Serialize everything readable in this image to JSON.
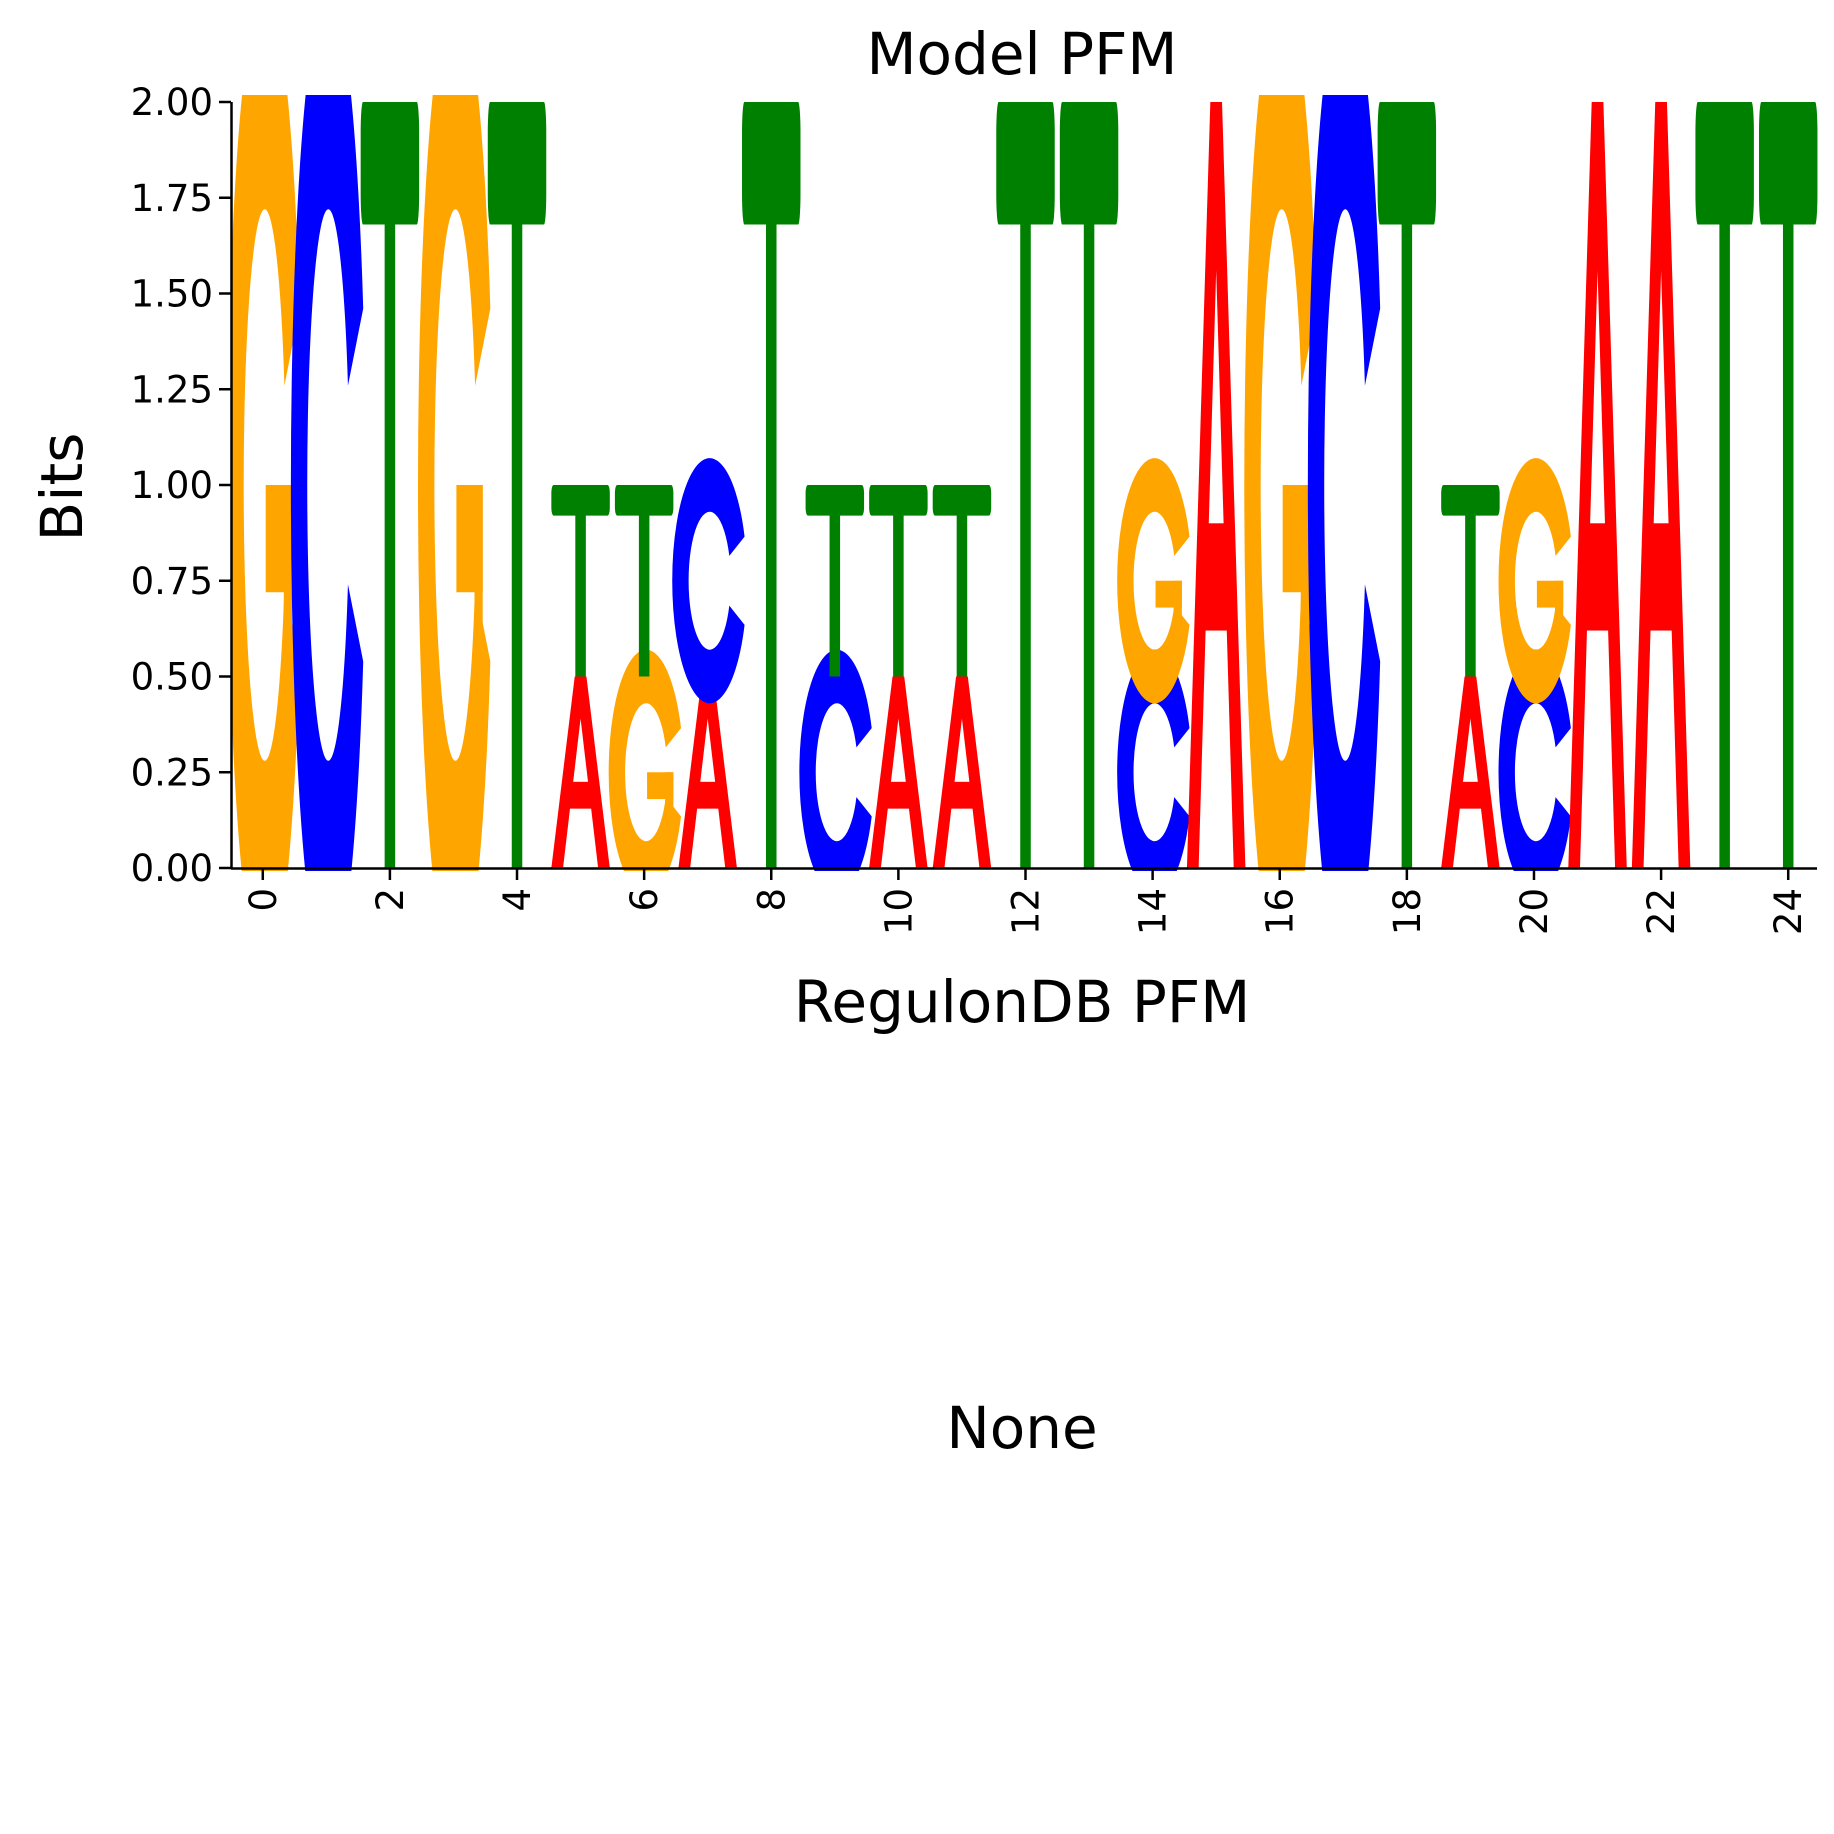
{
  "chart_data": {
    "type": "sequence-logo",
    "title": "Model PFM",
    "xlabel": "RegulonDB PFM",
    "ylabel": "Bits",
    "lower_panel_text": "None",
    "ylim": [
      0,
      2
    ],
    "xlim": [
      -0.5,
      24.5
    ],
    "y_ticks": [
      "0.00",
      "0.25",
      "0.50",
      "0.75",
      "1.00",
      "1.25",
      "1.50",
      "1.75",
      "2.00"
    ],
    "y_tick_values": [
      0,
      0.25,
      0.5,
      0.75,
      1.0,
      1.25,
      1.5,
      1.75,
      2.0
    ],
    "x_ticks": [
      "0",
      "2",
      "4",
      "6",
      "8",
      "10",
      "12",
      "14",
      "16",
      "18",
      "20",
      "22",
      "24"
    ],
    "x_tick_values": [
      0,
      2,
      4,
      6,
      8,
      10,
      12,
      14,
      16,
      18,
      20,
      22,
      24
    ],
    "colors": {
      "A": "#ff0000",
      "C": "#0000ff",
      "G": "#ffa500",
      "T": "#008000"
    },
    "positions": [
      [
        {
          "base": "G",
          "height": 2.0
        }
      ],
      [
        {
          "base": "C",
          "height": 2.0
        }
      ],
      [
        {
          "base": "T",
          "height": 2.0
        }
      ],
      [
        {
          "base": "G",
          "height": 2.0
        }
      ],
      [
        {
          "base": "T",
          "height": 2.0
        }
      ],
      [
        {
          "base": "A",
          "height": 0.5
        },
        {
          "base": "T",
          "height": 0.5
        }
      ],
      [
        {
          "base": "G",
          "height": 0.5
        },
        {
          "base": "T",
          "height": 0.5
        }
      ],
      [
        {
          "base": "A",
          "height": 0.5
        },
        {
          "base": "C",
          "height": 0.5
        }
      ],
      [
        {
          "base": "T",
          "height": 2.0
        }
      ],
      [
        {
          "base": "C",
          "height": 0.5
        },
        {
          "base": "T",
          "height": 0.5
        }
      ],
      [
        {
          "base": "A",
          "height": 0.5
        },
        {
          "base": "T",
          "height": 0.5
        }
      ],
      [
        {
          "base": "A",
          "height": 0.5
        },
        {
          "base": "T",
          "height": 0.5
        }
      ],
      [
        {
          "base": "T",
          "height": 2.0
        }
      ],
      [
        {
          "base": "T",
          "height": 2.0
        }
      ],
      [
        {
          "base": "C",
          "height": 0.5
        },
        {
          "base": "G",
          "height": 0.5
        }
      ],
      [
        {
          "base": "A",
          "height": 2.0
        }
      ],
      [
        {
          "base": "G",
          "height": 2.0
        }
      ],
      [
        {
          "base": "C",
          "height": 2.0
        }
      ],
      [
        {
          "base": "T",
          "height": 2.0
        }
      ],
      [
        {
          "base": "A",
          "height": 0.5
        },
        {
          "base": "T",
          "height": 0.5
        }
      ],
      [
        {
          "base": "C",
          "height": 0.5
        },
        {
          "base": "G",
          "height": 0.5
        }
      ],
      [
        {
          "base": "A",
          "height": 2.0
        }
      ],
      [
        {
          "base": "A",
          "height": 2.0
        }
      ],
      [
        {
          "base": "T",
          "height": 2.0
        }
      ],
      [
        {
          "base": "T",
          "height": 2.0
        }
      ]
    ]
  }
}
